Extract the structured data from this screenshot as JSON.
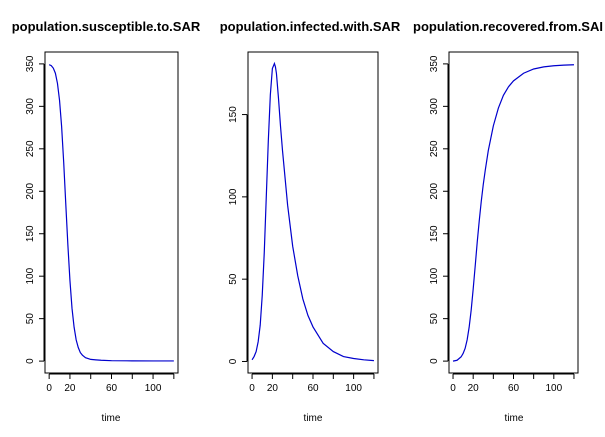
{
  "colors": {
    "series_line": "#0000cd",
    "axes": "#000000",
    "background": "#ffffff"
  },
  "chart_data": [
    {
      "type": "line",
      "title": "population.susceptible.to.SAR",
      "xlabel": "time",
      "ylabel": "",
      "xlim": [
        -4,
        124
      ],
      "ylim": [
        -14,
        364
      ],
      "xticks": [
        0,
        20,
        40,
        60,
        80,
        100,
        120
      ],
      "xtick_labels": [
        "0",
        "20",
        "",
        "60",
        "",
        "100",
        ""
      ],
      "yticks": [
        0,
        50,
        100,
        150,
        200,
        250,
        300,
        350
      ],
      "ytick_labels": [
        "0",
        "50",
        "100",
        "150",
        "200",
        "250",
        "300",
        "350"
      ],
      "grid": false,
      "series": [
        {
          "x": [
            0,
            2,
            4,
            6,
            8,
            10,
            12,
            14,
            16,
            18,
            20,
            22,
            24,
            26,
            28,
            30,
            32,
            35,
            40,
            45,
            50,
            60,
            80,
            100,
            120
          ],
          "values": [
            349,
            348,
            345,
            339,
            327,
            307,
            276,
            234,
            185,
            137,
            95,
            62,
            40,
            25,
            16,
            10,
            7,
            4,
            2,
            1.5,
            1,
            0.5,
            0.3,
            0.2,
            0.2
          ]
        }
      ]
    },
    {
      "type": "line",
      "title": "population.infected.with.SAR",
      "xlabel": "time",
      "ylabel": "",
      "xlim": [
        -4,
        124
      ],
      "ylim": [
        -7,
        188
      ],
      "xticks": [
        0,
        20,
        40,
        60,
        80,
        100,
        120
      ],
      "xtick_labels": [
        "0",
        "20",
        "",
        "60",
        "",
        "100",
        ""
      ],
      "yticks": [
        0,
        50,
        100,
        150
      ],
      "ytick_labels": [
        "0",
        "50",
        "100",
        "150"
      ],
      "grid": false,
      "series": [
        {
          "x": [
            0,
            2,
            4,
            6,
            8,
            10,
            12,
            14,
            16,
            18,
            20,
            22,
            23,
            24,
            26,
            28,
            30,
            35,
            40,
            45,
            50,
            55,
            60,
            70,
            80,
            90,
            100,
            110,
            120
          ],
          "values": [
            1,
            3,
            6,
            12,
            22,
            40,
            66,
            100,
            134,
            162,
            178,
            181,
            179,
            175,
            160,
            143,
            128,
            95,
            70,
            52,
            38,
            28,
            21,
            11,
            6,
            3,
            1.8,
            1,
            0.5
          ]
        }
      ]
    },
    {
      "type": "line",
      "title": "population.recovered.from.SAI",
      "xlabel": "time",
      "ylabel": "",
      "xlim": [
        -4,
        124
      ],
      "ylim": [
        -14,
        364
      ],
      "xticks": [
        0,
        20,
        40,
        60,
        80,
        100,
        120
      ],
      "xtick_labels": [
        "0",
        "20",
        "",
        "60",
        "",
        "100",
        ""
      ],
      "yticks": [
        0,
        50,
        100,
        150,
        200,
        250,
        300,
        350
      ],
      "ytick_labels": [
        "0",
        "50",
        "100",
        "150",
        "200",
        "250",
        "300",
        "350"
      ],
      "grid": false,
      "series": [
        {
          "x": [
            0,
            4,
            8,
            10,
            12,
            14,
            16,
            18,
            20,
            22,
            24,
            26,
            28,
            30,
            32,
            35,
            40,
            45,
            50,
            55,
            60,
            70,
            80,
            90,
            100,
            110,
            120
          ],
          "values": [
            0,
            1,
            5,
            9,
            15,
            25,
            40,
            60,
            85,
            112,
            140,
            165,
            188,
            208,
            225,
            248,
            277,
            298,
            313,
            323,
            330,
            339,
            344,
            346.5,
            347.8,
            348.5,
            349
          ]
        }
      ]
    }
  ]
}
